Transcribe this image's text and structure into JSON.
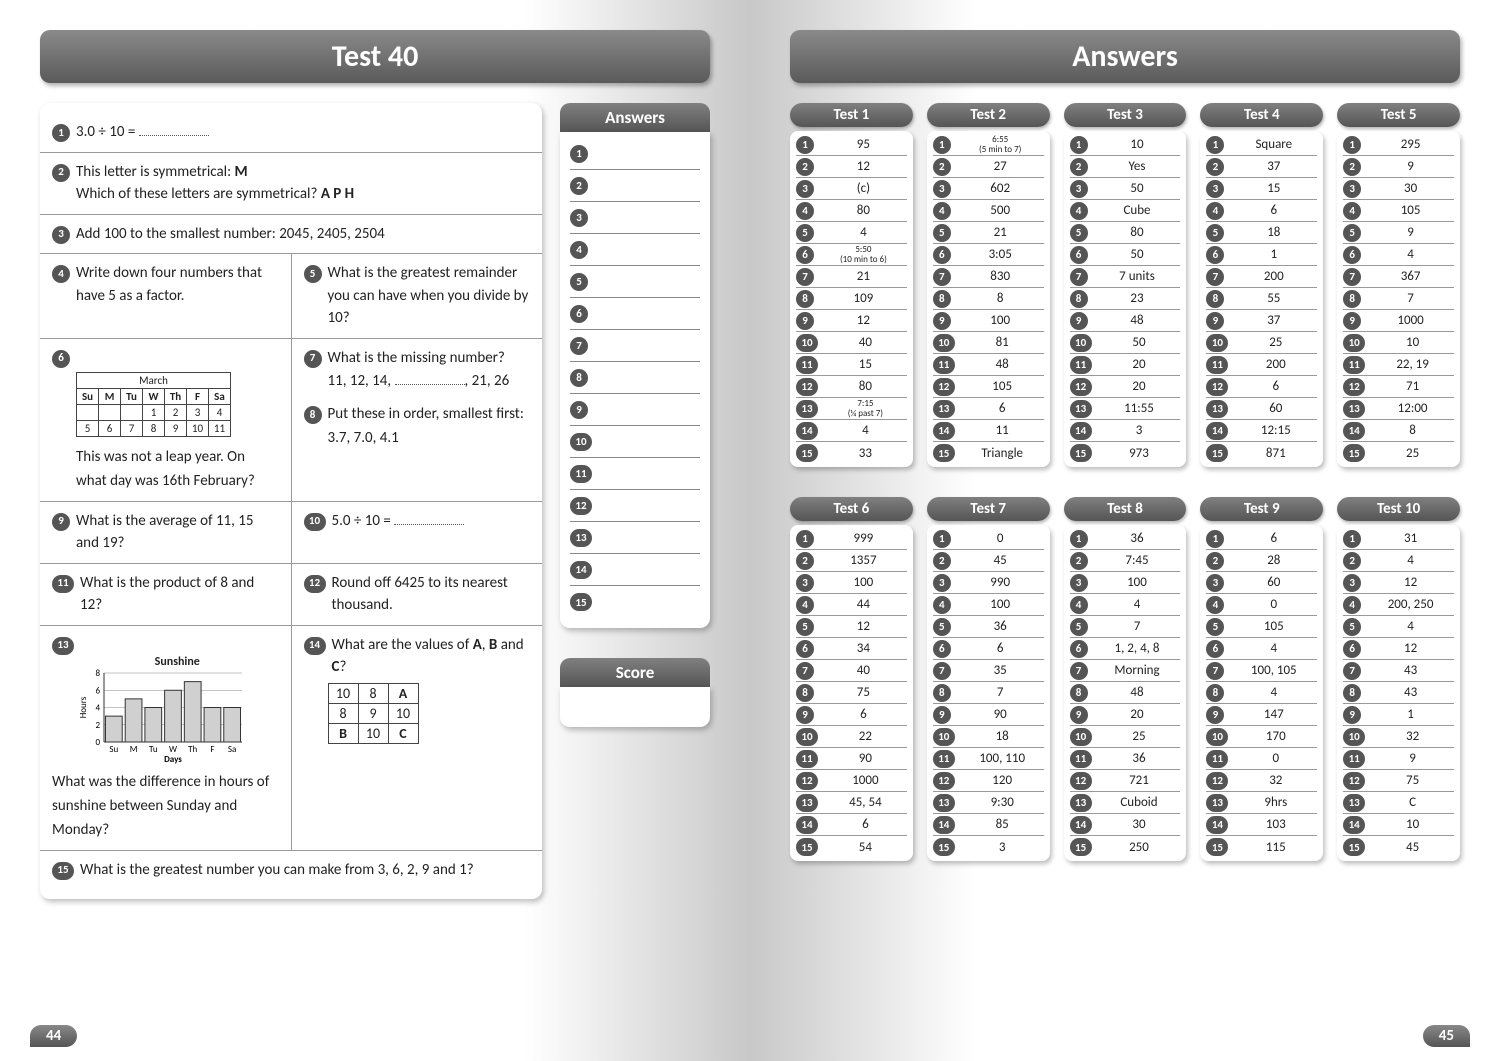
{
  "left_page": {
    "title": "Test 40",
    "answers_header": "Answers",
    "score_header": "Score",
    "page_number": "44",
    "answer_slots": [
      1,
      2,
      3,
      4,
      5,
      6,
      7,
      8,
      9,
      10,
      11,
      12,
      13,
      14,
      15
    ],
    "questions": {
      "q1": "3.0 ÷ 10 =",
      "q2_line1": "This letter is symmetrical: ",
      "q2_bold": "M",
      "q2_line2": "Which of these letters are symmetrical? ",
      "q2_opts": "A   P   H",
      "q3": "Add 100 to the smallest number: 2045, 2405, 2504",
      "q4": "Write down four numbers that have 5 as a factor.",
      "q5": "What is the greatest remainder you can have when you divide by 10?",
      "q6_after": "This was not a leap year. On what day was 16th February?",
      "q7_a": "What is the missing number?",
      "q7_b": "11, 12, 14, ",
      "q7_c": ", 21, 26",
      "q8_a": "Put these in order, smallest first:",
      "q8_b": "3.7, 7.0, 4.1",
      "q9": "What is the average of 11, 15 and 19?",
      "q10": "5.0 ÷ 10 =",
      "q11": "What is the product of 8 and 12?",
      "q12": "Round off 6425 to its nearest thousand.",
      "q13_after": "What was the difference in hours of sunshine between Sunday and Monday?",
      "q14_a": "What are the values of ",
      "q14_b": "A",
      "q14_c": ", ",
      "q14_d": "B",
      "q14_e": " and ",
      "q14_f": "C",
      "q14_g": "?",
      "q15": "What is the greatest number you can make from 3, 6, 2, 9 and 1?"
    },
    "calendar": {
      "caption": "March",
      "days": [
        "Su",
        "M",
        "Tu",
        "W",
        "Th",
        "F",
        "Sa"
      ],
      "row1": [
        "",
        "",
        "",
        "1",
        "2",
        "3",
        "4"
      ],
      "row2": [
        "5",
        "6",
        "7",
        "8",
        "9",
        "10",
        "11"
      ]
    },
    "grid3": {
      "r1": [
        "10",
        "8",
        "A"
      ],
      "r2": [
        "8",
        "9",
        "10"
      ],
      "r3": [
        "B",
        "10",
        "C"
      ]
    },
    "sunshine": {
      "title": "Sunshine",
      "ylabel": "Hours",
      "xlabel": "Days",
      "xcats": [
        "Su",
        "M",
        "Tu",
        "W",
        "Th",
        "F",
        "Sa"
      ],
      "values": [
        3,
        5,
        4,
        6,
        7,
        4,
        4
      ],
      "ylim": [
        0,
        8
      ],
      "ytick_step": 2,
      "bar_fill": "#d0d0d0",
      "bar_stroke": "#333333",
      "grid_color": "#888888",
      "width": 170,
      "height": 95,
      "bar_width": 0.85
    }
  },
  "right_page": {
    "title": "Answers",
    "page_number": "45",
    "tests_row1": [
      {
        "name": "Test 1",
        "answers": [
          "95",
          "12",
          "(c)",
          "80",
          "4",
          {
            "t": "5:50\n(10 min to 6)",
            "small": true
          },
          "21",
          "109",
          "12",
          "40",
          "15",
          "80",
          {
            "t": "7:15\n(¼ past 7)",
            "small": true
          },
          "4",
          "33"
        ]
      },
      {
        "name": "Test 2",
        "answers": [
          {
            "t": "6:55\n(5 min to 7)",
            "small": true
          },
          "27",
          "602",
          "500",
          "21",
          "3:05",
          "830",
          "8",
          "100",
          "81",
          "48",
          "105",
          "6",
          "11",
          "Triangle"
        ]
      },
      {
        "name": "Test 3",
        "answers": [
          "10",
          "Yes",
          "50",
          "Cube",
          "80",
          "50",
          "7 units",
          "23",
          "48",
          "50",
          "20",
          "20",
          "11:55",
          "3",
          "973"
        ]
      },
      {
        "name": "Test 4",
        "answers": [
          "Square",
          "37",
          "15",
          "6",
          "18",
          "1",
          "200",
          "55",
          "37",
          "25",
          "200",
          "6",
          "60",
          "12:15",
          "871"
        ]
      },
      {
        "name": "Test 5",
        "answers": [
          "295",
          "9",
          "30",
          "105",
          "9",
          "4",
          "367",
          "7",
          "1000",
          "10",
          "22, 19",
          "71",
          "12:00",
          "8",
          "25"
        ]
      }
    ],
    "tests_row2": [
      {
        "name": "Test 6",
        "answers": [
          "999",
          "1357",
          "100",
          "44",
          "12",
          "34",
          "40",
          "75",
          "6",
          "22",
          "90",
          "1000",
          "45, 54",
          "6",
          "54"
        ]
      },
      {
        "name": "Test 7",
        "answers": [
          "0",
          "45",
          "990",
          "100",
          "36",
          "6",
          "35",
          "7",
          "90",
          "18",
          "100, 110",
          "120",
          "9:30",
          "85",
          "3"
        ]
      },
      {
        "name": "Test 8",
        "answers": [
          "36",
          "7:45",
          "100",
          "4",
          "7",
          "1, 2, 4, 8",
          "Morning",
          "48",
          "20",
          "25",
          "36",
          "721",
          "Cuboid",
          "30",
          "250"
        ]
      },
      {
        "name": "Test 9",
        "answers": [
          "6",
          "28",
          "60",
          "0",
          "105",
          "4",
          "100, 105",
          "4",
          "147",
          "170",
          "0",
          "32",
          "9hrs",
          "103",
          "115"
        ]
      },
      {
        "name": "Test 10",
        "answers": [
          "31",
          "4",
          "12",
          "200, 250",
          "4",
          "12",
          "43",
          "43",
          "1",
          "32",
          "9",
          "75",
          "C",
          "10",
          "45"
        ]
      }
    ]
  }
}
